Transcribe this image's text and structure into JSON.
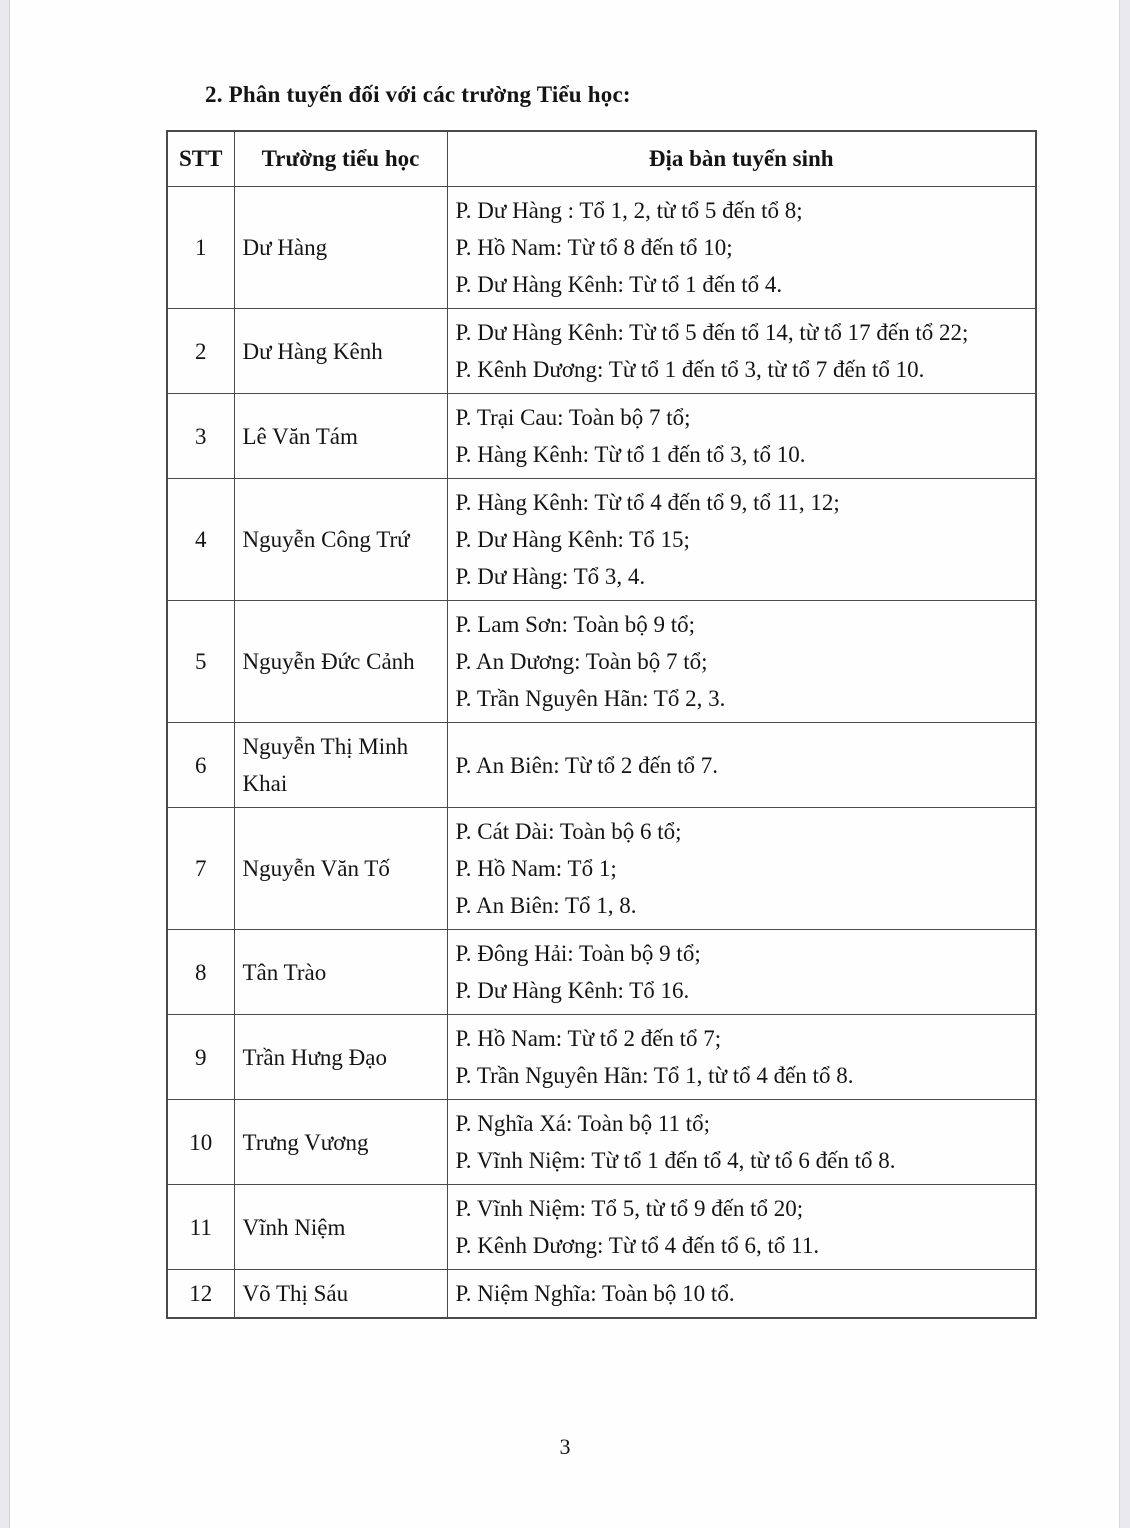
{
  "page": {
    "title": "2. Phân tuyến đối với các trường Tiểu học:",
    "page_number": "3"
  },
  "table": {
    "headers": [
      "STT",
      "Trường tiểu học",
      "Địa bàn tuyển sinh"
    ],
    "rows": [
      {
        "stt": "1",
        "school": "Dư Hàng",
        "areas": [
          "P. Dư Hàng : Tổ 1, 2, từ tổ 5 đến tổ 8;",
          "P. Hồ Nam: Từ tổ 8 đến tổ 10;",
          "P. Dư Hàng Kênh: Từ tổ 1 đến tổ 4."
        ]
      },
      {
        "stt": "2",
        "school": "Dư Hàng Kênh",
        "areas": [
          "P. Dư Hàng Kênh: Từ tổ 5 đến tổ 14, từ tổ 17 đến tổ 22;",
          "P. Kênh Dương: Từ tổ 1 đến tổ 3, từ tổ 7 đến tổ 10."
        ]
      },
      {
        "stt": "3",
        "school": "Lê Văn Tám",
        "areas": [
          "P. Trại Cau: Toàn bộ 7 tổ;",
          "P. Hàng Kênh: Từ tổ 1 đến tổ 3, tổ 10."
        ]
      },
      {
        "stt": "4",
        "school": "Nguyễn Công Trứ",
        "areas": [
          "P. Hàng Kênh: Từ tổ 4 đến tổ 9, tổ 11, 12;",
          "P. Dư Hàng Kênh: Tổ 15;",
          "P. Dư Hàng: Tổ 3, 4."
        ]
      },
      {
        "stt": "5",
        "school": "Nguyễn Đức Cảnh",
        "areas": [
          "P. Lam Sơn: Toàn bộ 9 tổ;",
          "P. An Dương: Toàn bộ 7 tổ;",
          "P. Trần Nguyên Hãn: Tổ 2, 3."
        ]
      },
      {
        "stt": "6",
        "school": "Nguyễn Thị Minh Khai",
        "areas": [
          "P. An Biên: Từ tổ 2 đến tổ 7."
        ]
      },
      {
        "stt": "7",
        "school": "Nguyễn Văn Tố",
        "areas": [
          "P. Cát Dài: Toàn bộ 6 tổ;",
          "P. Hồ Nam: Tổ 1;",
          "P. An Biên: Tổ 1, 8."
        ]
      },
      {
        "stt": "8",
        "school": "Tân Trào",
        "areas": [
          "P. Đông Hải: Toàn bộ 9 tổ;",
          "P. Dư Hàng Kênh: Tổ 16."
        ]
      },
      {
        "stt": "9",
        "school": "Trần Hưng Đạo",
        "areas": [
          "P. Hồ Nam: Từ tổ 2 đến tổ 7;",
          "P. Trần Nguyên Hãn: Tổ 1, từ tổ 4 đến tổ 8."
        ]
      },
      {
        "stt": "10",
        "school": "Trưng Vương",
        "areas": [
          "P. Nghĩa Xá: Toàn bộ 11 tổ;",
          "P. Vĩnh Niệm: Từ tổ 1 đến tổ 4, từ tổ 6 đến tổ 8."
        ]
      },
      {
        "stt": "11",
        "school": "Vĩnh Niệm",
        "areas": [
          "P. Vĩnh Niệm: Tổ 5, từ tổ 9 đến tổ 20;",
          "P. Kênh Dương: Từ tổ 4 đến tổ 6, tổ 11."
        ]
      },
      {
        "stt": "12",
        "school": "Võ Thị Sáu",
        "areas": [
          "P. Niệm Nghĩa: Toàn bộ 10 tổ."
        ]
      }
    ]
  }
}
